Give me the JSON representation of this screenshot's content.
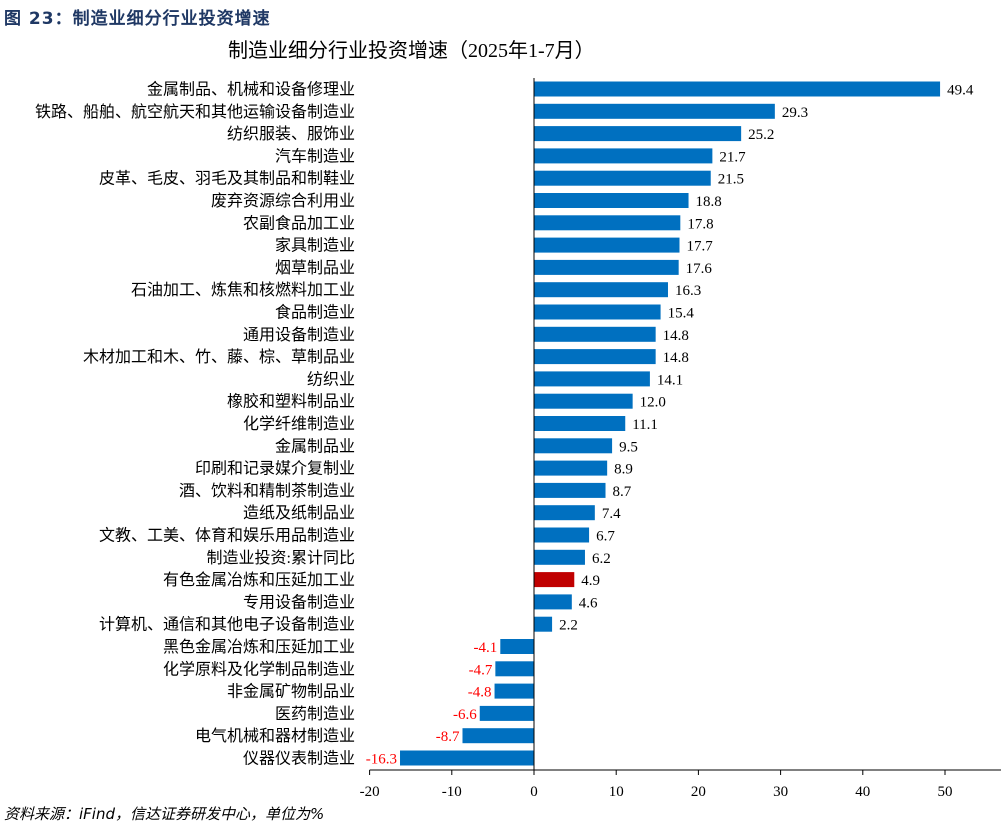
{
  "figure_title": "图 23：制造业细分行业投资增速",
  "source": "资料来源：iFind，信达证券研发中心，单位为%",
  "colors": {
    "bar": "#0070C0",
    "highlight": "#C00000",
    "negative_label": "#FF0000"
  },
  "chart_data": {
    "type": "bar",
    "orientation": "horizontal",
    "title": "制造业细分行业投资增速（2025年1-7月）",
    "xlim": [
      -20,
      57
    ],
    "xticks": [
      -20,
      -10,
      0,
      10,
      20,
      30,
      40,
      50
    ],
    "grid": false,
    "highlight_category": "有色金属冶炼和压延加工业",
    "categories": [
      "金属制品、机械和设备修理业",
      "铁路、船舶、航空航天和其他运输设备制造业",
      "纺织服装、服饰业",
      "汽车制造业",
      "皮革、毛皮、羽毛及其制品和制鞋业",
      "废弃资源综合利用业",
      "农副食品加工业",
      "家具制造业",
      "烟草制品业",
      "石油加工、炼焦和核燃料加工业",
      "食品制造业",
      "通用设备制造业",
      "木材加工和木、竹、藤、棕、草制品业",
      "纺织业",
      "橡胶和塑料制品业",
      "化学纤维制造业",
      "金属制品业",
      "印刷和记录媒介复制业",
      "酒、饮料和精制茶制造业",
      "造纸及纸制品业",
      "文教、工美、体育和娱乐用品制造业",
      "制造业投资:累计同比",
      "有色金属冶炼和压延加工业",
      "专用设备制造业",
      "计算机、通信和其他电子设备制造业",
      "黑色金属冶炼和压延加工业",
      "化学原料及化学制品制造业",
      "非金属矿物制品业",
      "医药制造业",
      "电气机械和器材制造业",
      "仪器仪表制造业"
    ],
    "values": [
      49.4,
      29.3,
      25.2,
      21.7,
      21.5,
      18.8,
      17.8,
      17.7,
      17.6,
      16.3,
      15.4,
      14.8,
      14.8,
      14.1,
      12.0,
      11.1,
      9.5,
      8.9,
      8.7,
      7.4,
      6.7,
      6.2,
      4.9,
      4.6,
      2.2,
      -4.1,
      -4.7,
      -4.8,
      -6.6,
      -8.7,
      -16.3
    ]
  }
}
